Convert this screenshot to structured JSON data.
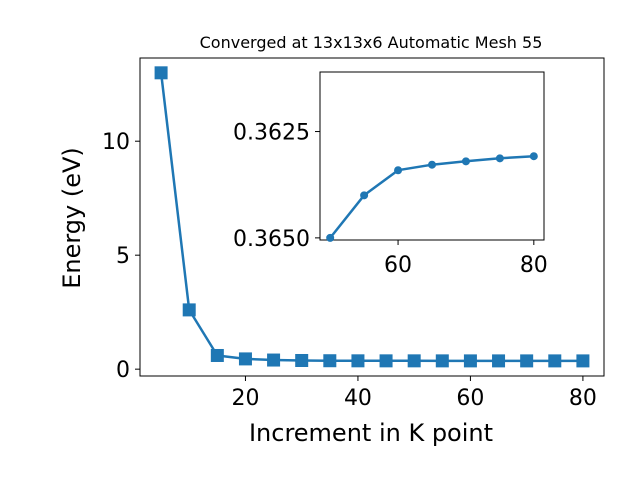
{
  "chart_data": [
    {
      "type": "line",
      "title": "Converged at 13x13x6 Automatic Mesh 55",
      "xlabel": "Increment in K point",
      "ylabel": "Energy (eV)",
      "xlim": [
        1.25,
        83.75
      ],
      "ylim": [
        -0.3,
        13.65
      ],
      "xticks": [
        20,
        40,
        60,
        80
      ],
      "yticks": [
        0,
        5,
        10
      ],
      "grid": false,
      "marker": "square",
      "color": "#1f77b4",
      "series": [
        {
          "x": [
            5,
            10,
            15,
            20,
            25,
            30,
            35,
            40,
            45,
            50,
            55,
            60,
            65,
            70,
            75,
            80
          ],
          "y": [
            13.0,
            2.6,
            0.6,
            0.45,
            0.4,
            0.38,
            0.37,
            0.366,
            0.365,
            0.365,
            0.364,
            0.3634,
            0.3633,
            0.3632,
            0.3631,
            0.363
          ]
        }
      ]
    },
    {
      "type": "line",
      "role": "inset",
      "xlim": [
        48.5,
        81.5
      ],
      "ylim": [
        0.36505,
        0.3611
      ],
      "yaxis_inverted": true,
      "xticks": [
        60,
        80
      ],
      "yticks": [
        0.3625,
        0.365
      ],
      "ytick_labels": [
        "0.3625",
        "0.3650"
      ],
      "grid": false,
      "marker": "circle",
      "color": "#1f77b4",
      "series": [
        {
          "x": [
            50,
            55,
            60,
            65,
            70,
            75,
            80
          ],
          "y": [
            0.365,
            0.364,
            0.36341,
            0.36328,
            0.3632,
            0.36313,
            0.36308
          ]
        }
      ]
    }
  ]
}
